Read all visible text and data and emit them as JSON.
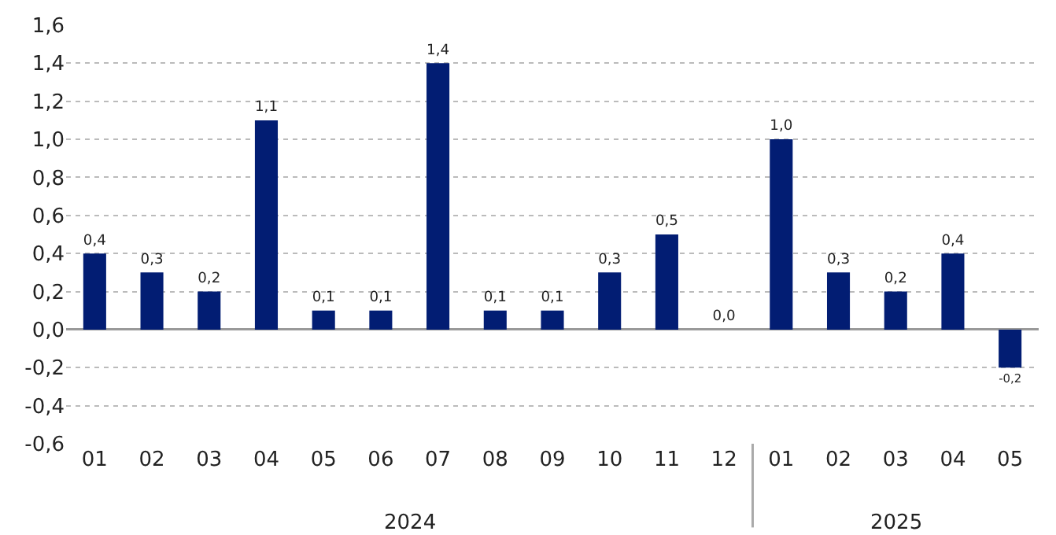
{
  "chart_data": {
    "type": "bar",
    "categories": [
      "01",
      "02",
      "03",
      "04",
      "05",
      "06",
      "07",
      "08",
      "09",
      "10",
      "11",
      "12",
      "01",
      "02",
      "03",
      "04",
      "05"
    ],
    "values": [
      0.4,
      0.3,
      0.2,
      1.1,
      0.1,
      0.1,
      1.4,
      0.1,
      0.1,
      0.3,
      0.5,
      0.0,
      1.0,
      0.3,
      0.2,
      0.4,
      -0.2
    ],
    "value_labels": [
      "0,4",
      "0,3",
      "0,2",
      "1,1",
      "0,1",
      "0,1",
      "1,4",
      "0,1",
      "0,1",
      "0,3",
      "0,5",
      "0,0",
      "1,0",
      "0,3",
      "0,2",
      "0,4",
      "-0,2"
    ],
    "color": "#021d73",
    "ylim": [
      -0.6,
      1.6
    ],
    "yticks": [
      {
        "value": -0.6,
        "label": "-0,6"
      },
      {
        "value": -0.4,
        "label": "-0,4"
      },
      {
        "value": -0.2,
        "label": "-0,2"
      },
      {
        "value": 0,
        "label": "0,0"
      },
      {
        "value": 0.2,
        "label": "0,2"
      },
      {
        "value": 0.4,
        "label": "0,4"
      },
      {
        "value": 0.6,
        "label": "0,6"
      },
      {
        "value": 0.8,
        "label": "0,8"
      },
      {
        "value": 1.0,
        "label": "1,0"
      },
      {
        "value": 1.2,
        "label": "1,2"
      },
      {
        "value": 1.4,
        "label": "1,4"
      },
      {
        "value": 1.6,
        "label": "1,6"
      }
    ],
    "grid": "y",
    "legend": false,
    "annotations": [
      "2024",
      "2025"
    ]
  }
}
